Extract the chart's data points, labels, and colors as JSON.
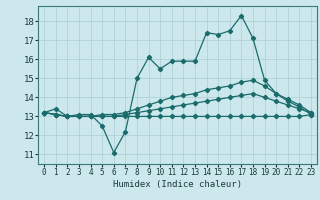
{
  "xlabel": "Humidex (Indice chaleur)",
  "xlim": [
    -0.5,
    23.5
  ],
  "ylim": [
    10.5,
    18.8
  ],
  "yticks": [
    11,
    12,
    13,
    14,
    15,
    16,
    17,
    18
  ],
  "xticks": [
    0,
    1,
    2,
    3,
    4,
    5,
    6,
    7,
    8,
    9,
    10,
    11,
    12,
    13,
    14,
    15,
    16,
    17,
    18,
    19,
    20,
    21,
    22,
    23
  ],
  "bg_color": "#cce8ec",
  "line_color": "#1a6b6b",
  "grid_color": "#aacdd4",
  "line1_y": [
    13.2,
    13.4,
    13.0,
    13.1,
    13.1,
    12.5,
    11.1,
    12.2,
    15.0,
    16.1,
    15.5,
    15.9,
    15.9,
    15.9,
    17.4,
    17.3,
    17.5,
    18.3,
    17.1,
    14.9,
    14.2,
    13.8,
    13.5,
    13.1
  ],
  "line2_y": [
    13.2,
    13.1,
    13.0,
    13.0,
    13.0,
    13.1,
    13.1,
    13.2,
    13.4,
    13.6,
    13.8,
    14.0,
    14.1,
    14.2,
    14.4,
    14.5,
    14.6,
    14.8,
    14.9,
    14.6,
    14.2,
    13.9,
    13.6,
    13.2
  ],
  "line3_y": [
    13.2,
    13.1,
    13.0,
    13.0,
    13.0,
    13.0,
    13.0,
    13.1,
    13.2,
    13.3,
    13.4,
    13.5,
    13.6,
    13.7,
    13.8,
    13.9,
    14.0,
    14.1,
    14.2,
    14.0,
    13.8,
    13.6,
    13.4,
    13.2
  ],
  "line4_y": [
    13.2,
    13.1,
    13.0,
    13.0,
    13.0,
    13.0,
    13.0,
    13.0,
    13.0,
    13.0,
    13.0,
    13.0,
    13.0,
    13.0,
    13.0,
    13.0,
    13.0,
    13.0,
    13.0,
    13.0,
    13.0,
    13.0,
    13.0,
    13.1
  ]
}
